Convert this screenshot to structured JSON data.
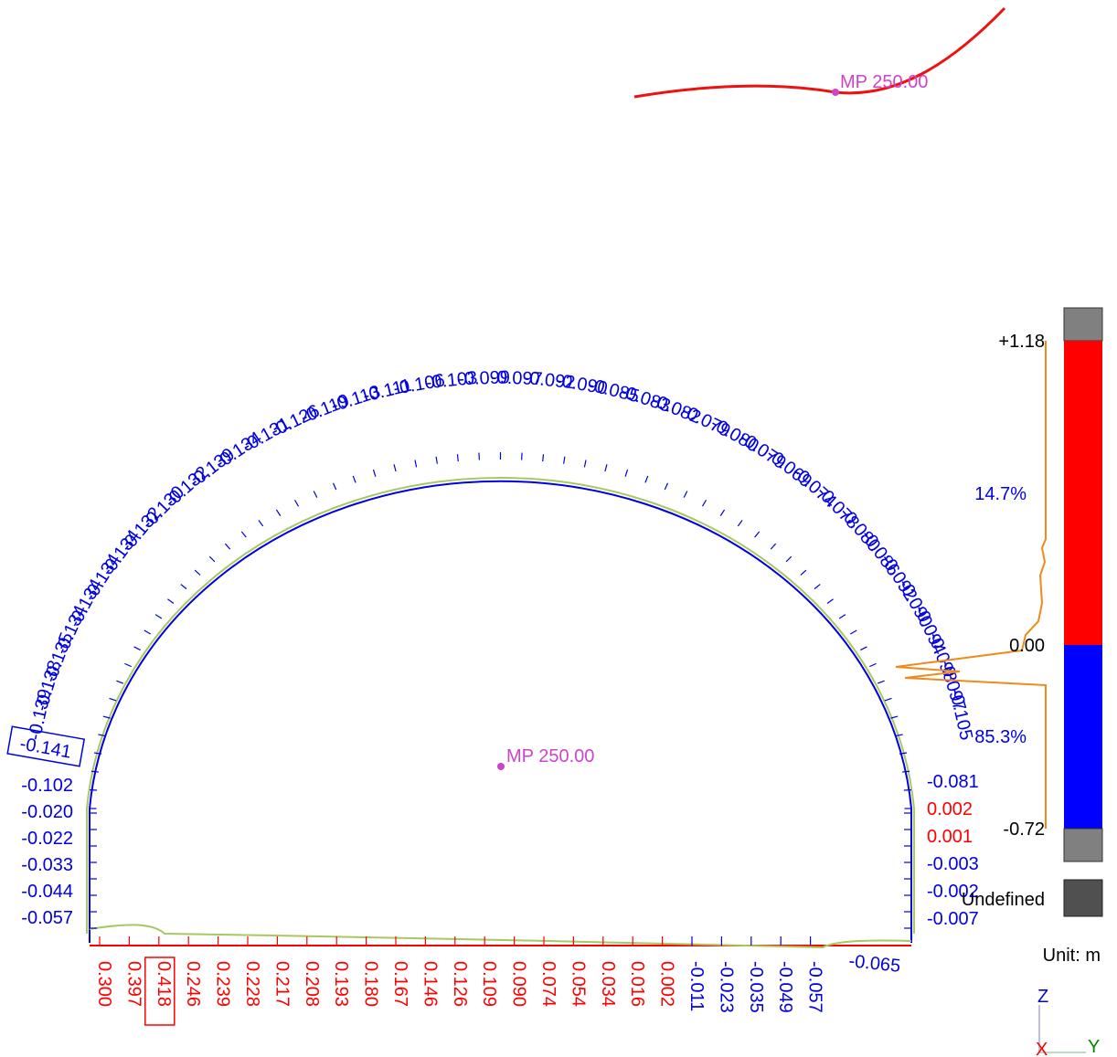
{
  "location_label": "MP 250.00",
  "center_label": "MP 250.00",
  "legend": {
    "max": "+1.18",
    "zero": "0.00",
    "min": "-0.72",
    "positive_pct": "14.7%",
    "negative_pct": "85.3%",
    "undefined_label": "Undefined",
    "unit": "Unit: m",
    "colors": {
      "positive": "#ff0000",
      "negative": "#0000ff",
      "out_of_range": "#808080",
      "undefined": "#505050"
    }
  },
  "axes": {
    "z": "Z",
    "x": "X",
    "y": "Y"
  },
  "arch_values": [
    "-0.139",
    "-0.138",
    "-0.135",
    "-0.134",
    "-0.134",
    "-0.134",
    "-0.134",
    "-0.132",
    "-0.130",
    "-0.132",
    "-0.139",
    "-0.134",
    "-0.131",
    "-0.126",
    "-0.119",
    "-0.113",
    "-0.111",
    "-0.106",
    "-0.103",
    "-0.099",
    "-0.097",
    "-0.092",
    "-0.090",
    "-0.085",
    "-0.083",
    "-0.082",
    "-0.079",
    "-0.080",
    "-0.079",
    "-0.069",
    "-0.074",
    "-0.078",
    "-0.080",
    "-0.086",
    "-0.092",
    "-0.090",
    "-0.094",
    "-0.098",
    "-0.097",
    "-0.105"
  ],
  "left_boxed_value": "-0.141",
  "left_wall_values": [
    "-0.102",
    "-0.020",
    "-0.022",
    "-0.033",
    "-0.044",
    "-0.057"
  ],
  "right_wall_values": [
    "-0.081",
    "0.002",
    "0.001",
    "-0.003",
    "-0.002",
    "-0.007"
  ],
  "bottom_values": [
    "0.300",
    "0.397",
    "0.418",
    "0.246",
    "0.239",
    "0.228",
    "0.217",
    "0.208",
    "0.193",
    "0.180",
    "0.167",
    "0.146",
    "0.126",
    "0.109",
    "0.090",
    "0.074",
    "0.054",
    "0.034",
    "0.016",
    "0.002",
    "-0.011",
    "-0.023",
    "-0.035",
    "-0.049",
    "-0.057"
  ],
  "bottom_right_value": "-0.065"
}
